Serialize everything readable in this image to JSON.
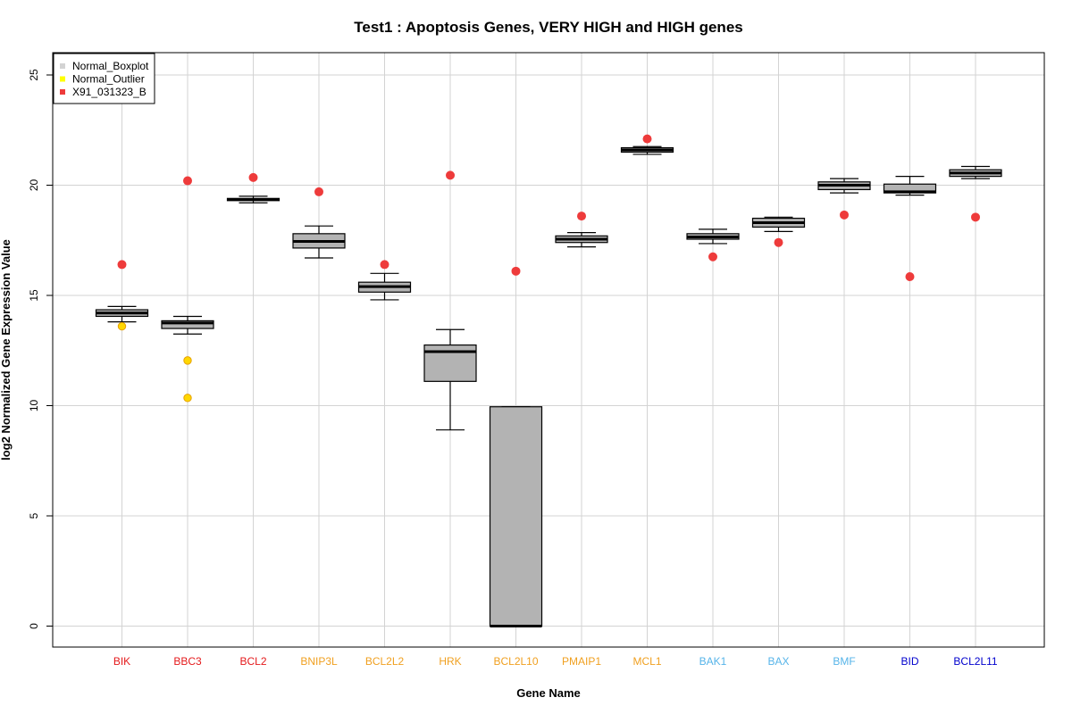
{
  "chart_data": {
    "type": "boxplot",
    "title": "Test1 : Apoptosis Genes, VERY HIGH and HIGH genes",
    "xlabel": "Gene Name",
    "ylabel": "log2 Normalized Gene Expression Value",
    "ylim": [
      -1,
      26
    ],
    "yticks": [
      0,
      5,
      10,
      15,
      20,
      25
    ],
    "grid": true,
    "legend": {
      "placement": "top-left",
      "entries": [
        {
          "label": "Normal_Boxplot",
          "color": "#d3d3d3"
        },
        {
          "label": "Normal_Outlier",
          "color": "#ffff00"
        },
        {
          "label": "X91_031323_B",
          "color": "#ee3b3b"
        }
      ]
    },
    "colors": {
      "box_fill": "#b3b3b3",
      "outlier_fill": "#ffd700",
      "outlier_edge": "#e6a000",
      "sample_point": "#ee3b3b",
      "grid": "#d3d3d3"
    },
    "categories": [
      "BIK",
      "BBC3",
      "BCL2",
      "BNIP3L",
      "BCL2L2",
      "HRK",
      "BCL2L10",
      "PMAIP1",
      "MCL1",
      "BAK1",
      "BAX",
      "BMF",
      "BID",
      "BCL2L11"
    ],
    "label_colors": [
      "#e41a1c",
      "#e41a1c",
      "#e41a1c",
      "#f0a020",
      "#f0a020",
      "#f0a020",
      "#f0a020",
      "#f0a020",
      "#f0a020",
      "#56b4e9",
      "#56b4e9",
      "#56b4e9",
      "#0000cd",
      "#0000cd"
    ],
    "boxes": [
      {
        "whisker_low": 13.8,
        "q1": 14.05,
        "median": 14.2,
        "q3": 14.35,
        "whisker_high": 14.5,
        "outliers": [
          13.6
        ]
      },
      {
        "whisker_low": 13.25,
        "q1": 13.5,
        "median": 13.75,
        "q3": 13.85,
        "whisker_high": 14.05,
        "outliers": [
          12.05,
          10.35
        ]
      },
      {
        "whisker_low": 19.2,
        "q1": 19.3,
        "median": 19.35,
        "q3": 19.4,
        "whisker_high": 19.5,
        "outliers": []
      },
      {
        "whisker_low": 16.7,
        "q1": 17.15,
        "median": 17.45,
        "q3": 17.8,
        "whisker_high": 18.15,
        "outliers": []
      },
      {
        "whisker_low": 14.8,
        "q1": 15.15,
        "median": 15.4,
        "q3": 15.6,
        "whisker_high": 16.0,
        "outliers": []
      },
      {
        "whisker_low": 8.9,
        "q1": 11.1,
        "median": 12.45,
        "q3": 12.75,
        "whisker_high": 13.45,
        "outliers": []
      },
      {
        "whisker_low": 0.0,
        "q1": 0.0,
        "median": 0.0,
        "q3": 9.95,
        "whisker_high": 9.95,
        "outliers": []
      },
      {
        "whisker_low": 17.2,
        "q1": 17.4,
        "median": 17.55,
        "q3": 17.7,
        "whisker_high": 17.85,
        "outliers": []
      },
      {
        "whisker_low": 21.4,
        "q1": 21.5,
        "median": 21.6,
        "q3": 21.7,
        "whisker_high": 21.75,
        "outliers": []
      },
      {
        "whisker_low": 17.35,
        "q1": 17.55,
        "median": 17.65,
        "q3": 17.8,
        "whisker_high": 18.0,
        "outliers": []
      },
      {
        "whisker_low": 17.9,
        "q1": 18.1,
        "median": 18.3,
        "q3": 18.5,
        "whisker_high": 18.55,
        "outliers": []
      },
      {
        "whisker_low": 19.65,
        "q1": 19.8,
        "median": 20.0,
        "q3": 20.15,
        "whisker_high": 20.3,
        "outliers": []
      },
      {
        "whisker_low": 19.55,
        "q1": 19.65,
        "median": 19.7,
        "q3": 20.05,
        "whisker_high": 20.4,
        "outliers": []
      },
      {
        "whisker_low": 20.3,
        "q1": 20.4,
        "median": 20.55,
        "q3": 20.7,
        "whisker_high": 20.85,
        "outliers": []
      }
    ],
    "sample_values": [
      16.4,
      20.2,
      20.35,
      19.7,
      16.4,
      20.45,
      16.1,
      18.6,
      22.1,
      16.75,
      17.4,
      18.65,
      15.85,
      18.55
    ]
  }
}
